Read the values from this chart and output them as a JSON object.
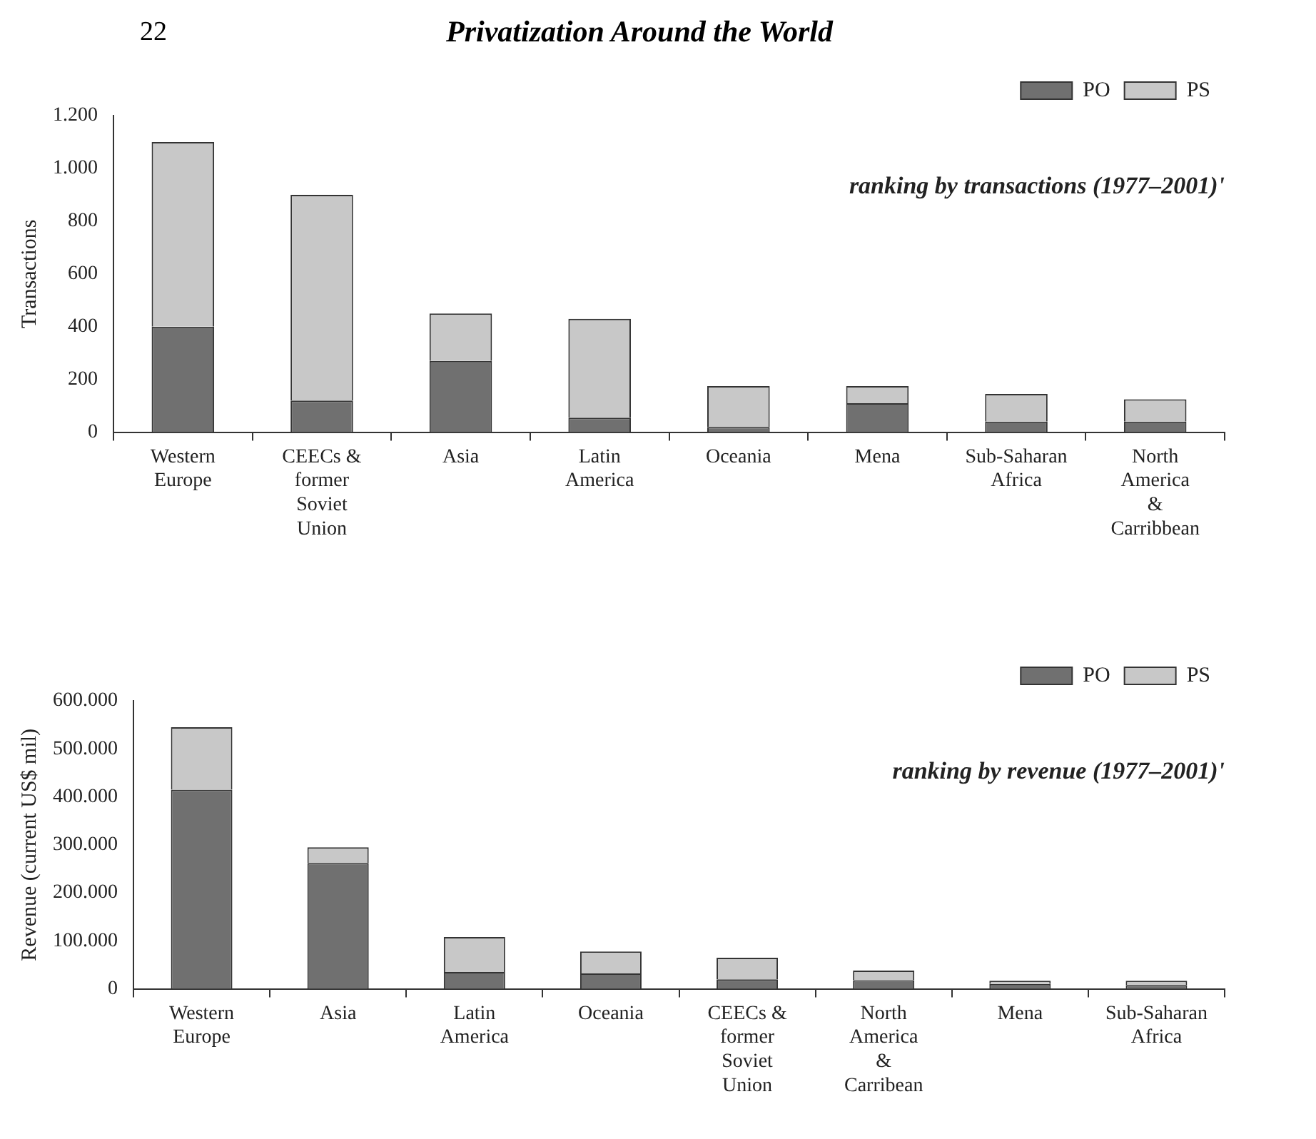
{
  "chart_data": [
    {
      "type": "bar",
      "title": "Privatization Around the World",
      "subtitle": "ranking by transactions (1977–2001)'",
      "annotations": [
        "22"
      ],
      "ylabel": "Transactions",
      "categories": [
        "Western Europe",
        "CEECs & former Soviet Union",
        "Asia",
        "Latin America",
        "Oceania",
        "Mena",
        "Sub-Saharan Africa",
        "North America & Carribbean"
      ],
      "series": [
        {
          "name": "PO",
          "color": "#707070",
          "values": [
            400,
            120,
            270,
            55,
            20,
            110,
            40,
            40
          ]
        },
        {
          "name": "PS",
          "color": "#c8c8c8",
          "values": [
            700,
            780,
            180,
            375,
            155,
            65,
            105,
            85
          ]
        }
      ],
      "stacked": true,
      "ylim": [
        0,
        1200
      ],
      "yticks": [
        0,
        200,
        400,
        600,
        800,
        {
          "value": 1000,
          "label": "1.000"
        },
        {
          "value": 1200,
          "label": "1.200"
        }
      ],
      "grid": false,
      "legend": "top right"
    },
    {
      "type": "bar",
      "subtitle": "ranking by revenue (1977–2001)'",
      "ylabel": "Revenue (current US$ mil)",
      "categories": [
        "Western Europe",
        "Asia",
        "Latin America",
        "Oceania",
        "CEECs & former Soviet Union",
        "North America & Carribean",
        "Mena",
        "Sub-Saharan Africa"
      ],
      "series": [
        {
          "name": "PO",
          "color": "#707070",
          "values": [
            415000,
            262000,
            35000,
            32000,
            20000,
            18000,
            10000,
            8000
          ]
        },
        {
          "name": "PS",
          "color": "#c8c8c8",
          "values": [
            130000,
            33000,
            73000,
            46000,
            45000,
            20000,
            7000,
            9000
          ]
        }
      ],
      "stacked": true,
      "ylim": [
        0,
        600000
      ],
      "yticks": [
        0,
        {
          "value": 100000,
          "label": "100.000"
        },
        {
          "value": 200000,
          "label": "200.000"
        },
        {
          "value": 300000,
          "label": "300.000"
        },
        {
          "value": 400000,
          "label": "400.000"
        },
        {
          "value": 500000,
          "label": "500.000"
        },
        {
          "value": 600000,
          "label": "600.000"
        }
      ],
      "grid": false,
      "legend": "top right"
    }
  ]
}
